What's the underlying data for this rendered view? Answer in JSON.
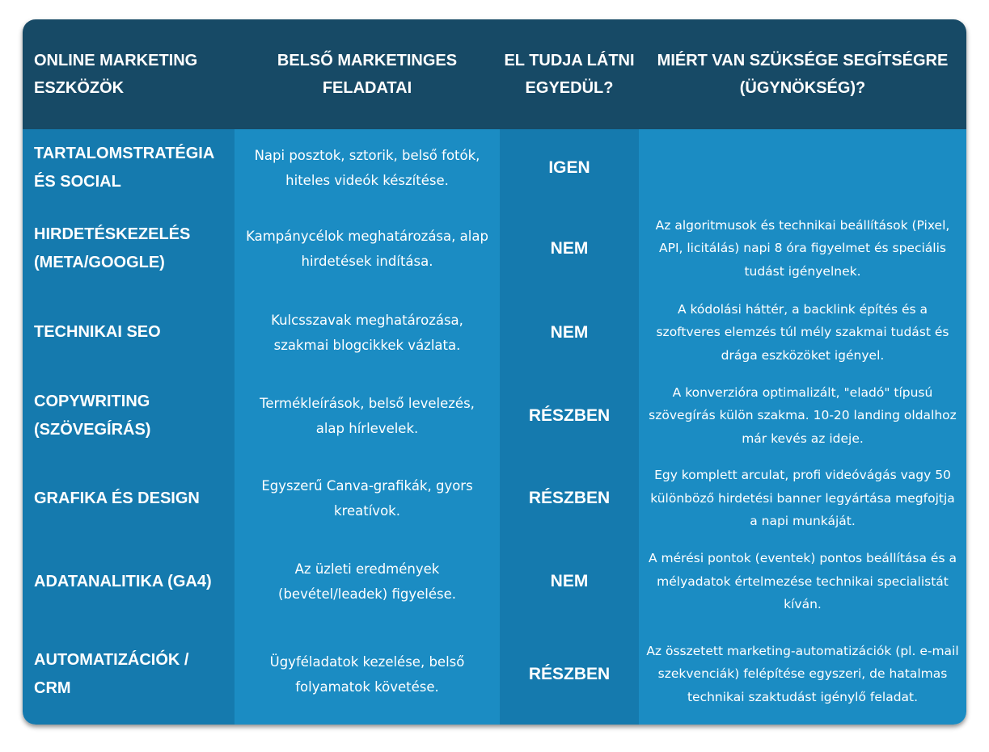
{
  "header": [
    "Online marketing eszközök",
    "Belső marketinges feladatai",
    "El tudja látni egyedül?",
    "Miért van szüksége segítségre (ügynökség)?"
  ],
  "rows": [
    {
      "tool": "TARTALOMSTRATÉGIA ÉS SOCIAL",
      "tasks": "Napi posztok, sztorik, belső fotók, hiteles videók készítése.",
      "answer": "IGEN",
      "why": ""
    },
    {
      "tool": "HIRDETÉSKEZELÉS (META/GOOGLE)",
      "tasks": "Kampánycélok meghatározása, alap hirdetések indítása.",
      "answer": "NEM",
      "why": "Az algoritmusok és technikai beállítások (Pixel, API, licitálás) napi 8 óra figyelmet és speciális tudást igényelnek."
    },
    {
      "tool": "TECHNIKAI SEO",
      "tasks": "Kulcsszavak meghatározása, szakmai blogcikkek vázlata.",
      "answer": "NEM",
      "why": "A kódolási háttér, a backlink építés és a szoftveres elemzés túl mély szakmai tudást és drága eszközöket igényel."
    },
    {
      "tool": "COPYWRITING (SZÖVEGÍRÁS)",
      "tasks": "Termékleírások, belső levelezés, alap hírlevelek.",
      "answer": "RÉSZBEN",
      "why": "A konverzióra optimalizált, \"eladó\" típusú szövegírás külön szakma. 10-20 landing oldalhoz már kevés az ideje."
    },
    {
      "tool": "GRAFIKA ÉS DESIGN",
      "tasks": "Egyszerű Canva-grafikák, gyors kreatívok.",
      "answer": "RÉSZBEN",
      "why": "Egy komplett arculat, profi videóvágás vagy 50 különböző hirdetési banner legyártása megfojtja a napi munkáját."
    },
    {
      "tool": "ADATANALITIKA (GA4)",
      "tasks": "Az üzleti eredmények (bevétel/leadek) figyelése.",
      "answer": "NEM",
      "why": "A mérési pontok (eventek) pontos beállítása és a mélyadatok értelmezése technikai specialistát kíván."
    },
    {
      "tool": "AUTOMATIZÁCIÓK / CRM",
      "tasks": "Ügyféladatok kezelése, belső folyamatok követése.",
      "answer": "RÉSZBEN",
      "why": "Az összetett marketing-automatizációk (pl. e-mail szekvenciák) felépítése egyszeri, de hatalmas technikai szaktudást igénylő feladat."
    }
  ]
}
